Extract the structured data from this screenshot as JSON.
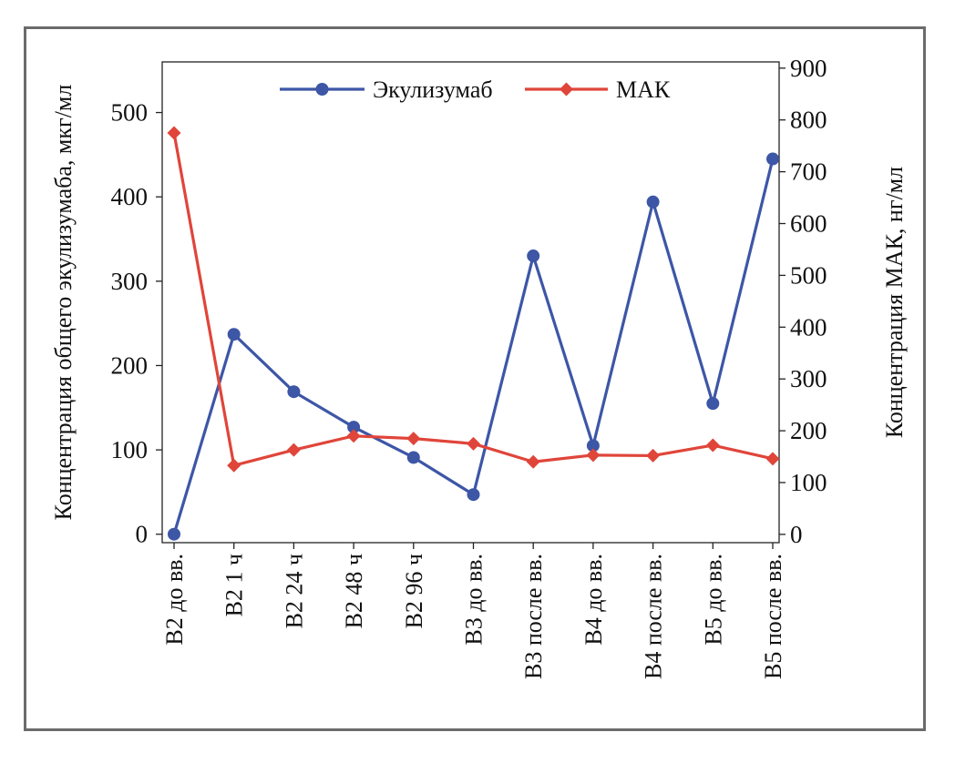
{
  "chart_data": {
    "type": "line",
    "categories": [
      "В2 до вв.",
      "В2 1 ч",
      "В2 24 ч",
      "В2 48 ч",
      "В2 96 ч",
      "В3 до вв.",
      "В3 после вв.",
      "В4 до вв.",
      "В4 после вв.",
      "В5 до вв.",
      "В5 после вв."
    ],
    "series": [
      {
        "name": "Экулизумаб",
        "axis": "left",
        "color": "#3d56a6",
        "marker": "circle",
        "values": [
          0,
          237,
          169,
          127,
          91,
          47,
          330,
          105,
          394,
          155,
          445
        ]
      },
      {
        "name": "МАК",
        "axis": "right",
        "color": "#e0453a",
        "marker": "diamond",
        "values": [
          775,
          133,
          163,
          190,
          185,
          175,
          140,
          153,
          152,
          172,
          146
        ]
      }
    ],
    "ylabel": "Концентрация общего экулизумаба, мкг/мл",
    "y2label": "Концентрация МАК, нг/мл",
    "ylim": [
      -10,
      560
    ],
    "y2lim": [
      -16,
      912
    ],
    "yticks": [
      0,
      100,
      200,
      300,
      400,
      500
    ],
    "y2ticks": [
      0,
      100,
      200,
      300,
      400,
      500,
      600,
      700,
      800,
      900
    ],
    "legend": "top-center",
    "grid": false
  }
}
